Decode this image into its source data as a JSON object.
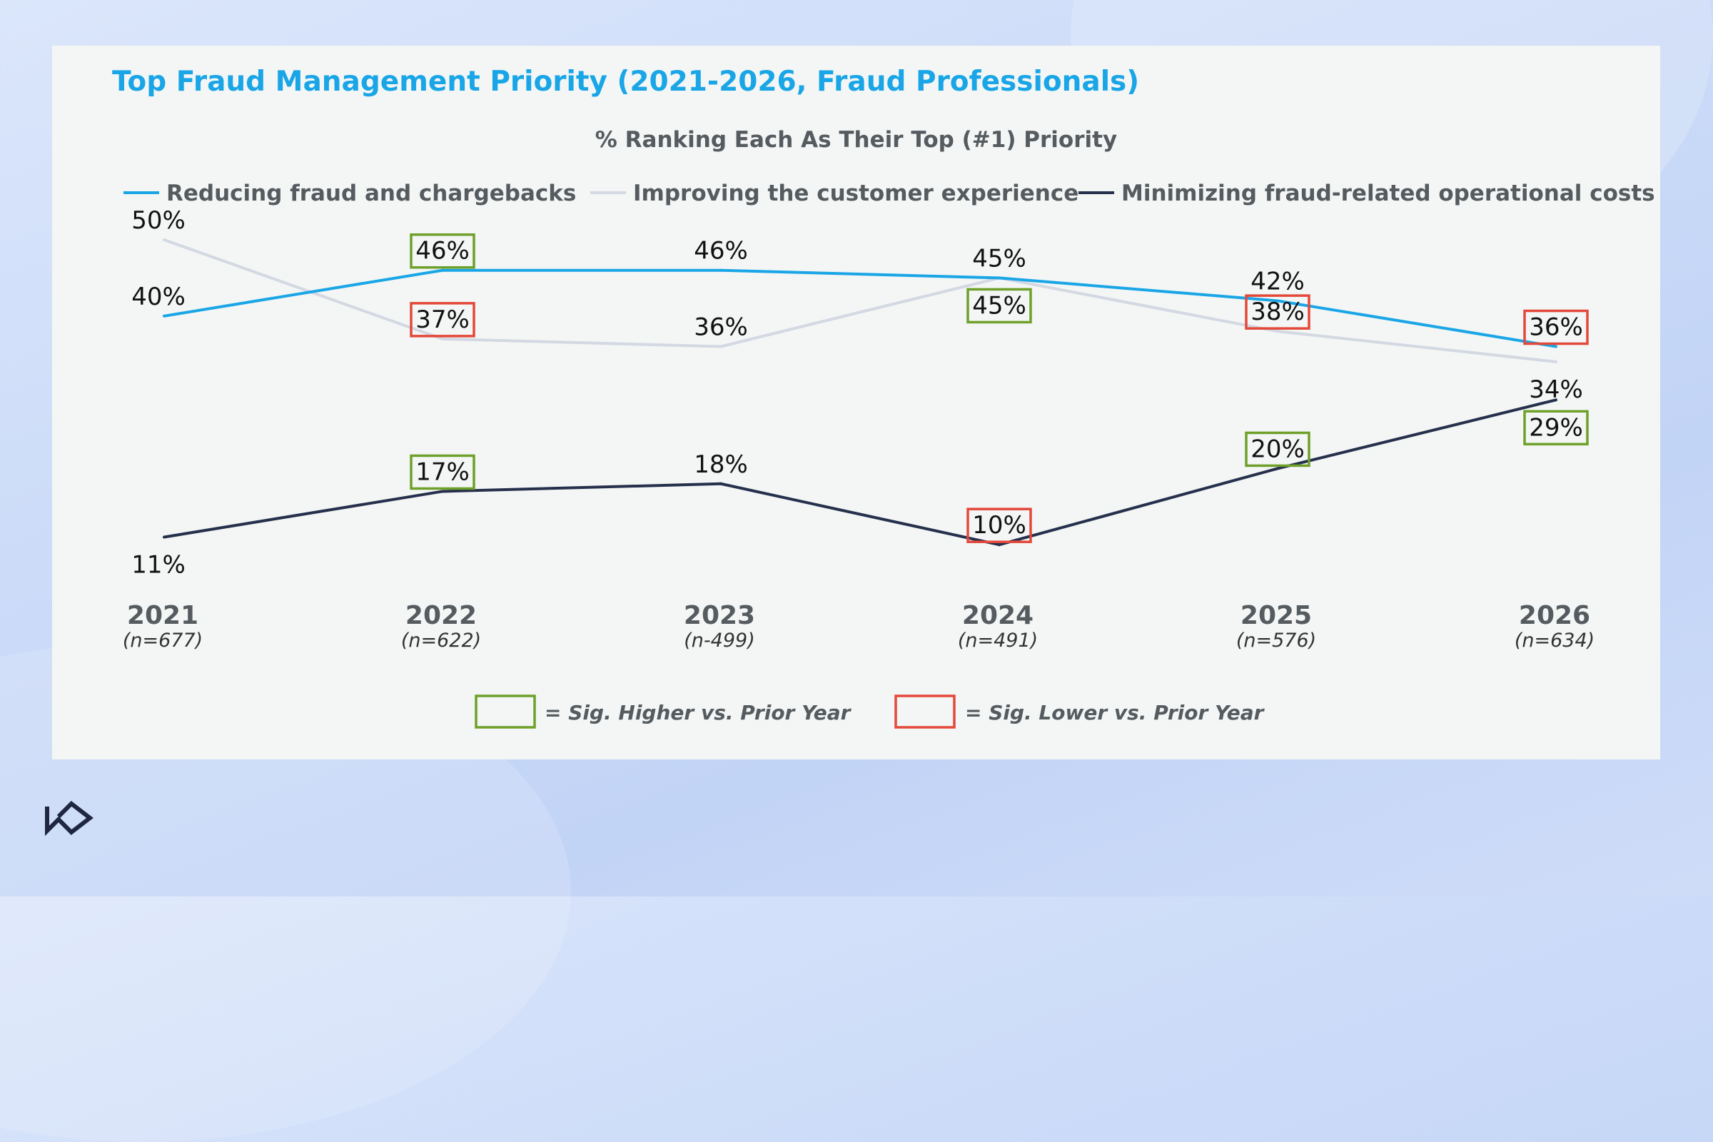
{
  "header": {
    "title": "Top Fraud Management Priority (2021-2026, Fraud Professionals)",
    "subtitle": "% Ranking Each As Their Top (#1) Priority"
  },
  "significance_legend": {
    "higher": "= Sig. Higher vs. Prior Year",
    "lower": "= Sig. Lower vs. Prior Year",
    "higher_color": "#6fa02a",
    "lower_color": "#e4483a"
  },
  "chart_data": {
    "type": "line",
    "title": "Top Fraud Management Priority (2021-2026, Fraud Professionals)",
    "subtitle": "% Ranking Each As Their Top (#1) Priority",
    "categories": [
      "2021",
      "2022",
      "2023",
      "2024",
      "2025",
      "2026"
    ],
    "sample_sizes": [
      "(n=677)",
      "(n=622)",
      "(n-499)",
      "(n=491)",
      "(n=576)",
      "(n=634)"
    ],
    "ylim": [
      0,
      55
    ],
    "grid": false,
    "legend_position": "top",
    "series": [
      {
        "name": "Reducing fraud and chargebacks",
        "color": "#1aa6e6",
        "values": [
          40,
          46,
          46,
          45,
          42,
          36
        ],
        "labels": [
          "40%",
          "46%",
          "46%",
          "45%",
          "42%",
          "36%"
        ],
        "label_side": [
          "above",
          "above",
          "above",
          "above",
          "above",
          "above"
        ],
        "significance": [
          "none",
          "higher",
          "none",
          "none",
          "none",
          "lower"
        ]
      },
      {
        "name": "Improving the customer experience",
        "color": "#d3d8e2",
        "values": [
          50,
          37,
          36,
          45,
          38,
          34
        ],
        "labels": [
          "50%",
          "37%",
          "36%",
          "45%",
          "38%",
          "34%"
        ],
        "label_side": [
          "above",
          "above",
          "above",
          "below",
          "above",
          "below"
        ],
        "significance": [
          "none",
          "lower",
          "none",
          "higher",
          "lower",
          "none"
        ]
      },
      {
        "name": "Minimizing fraud-related operational costs",
        "color": "#26304c",
        "values": [
          11,
          17,
          18,
          10,
          20,
          29
        ],
        "labels": [
          "11%",
          "17%",
          "18%",
          "10%",
          "20%",
          "29%"
        ],
        "label_side": [
          "below",
          "above",
          "above",
          "above",
          "above",
          "below"
        ],
        "significance": [
          "none",
          "higher",
          "none",
          "lower",
          "higher",
          "higher"
        ]
      }
    ]
  },
  "colors": {
    "panel_bg": "#f3f6f5",
    "title": "#1aa6e6",
    "text": "#111111",
    "axis_text": "#555b5f"
  },
  "icons": {
    "logo": "brand-logo-icon"
  }
}
